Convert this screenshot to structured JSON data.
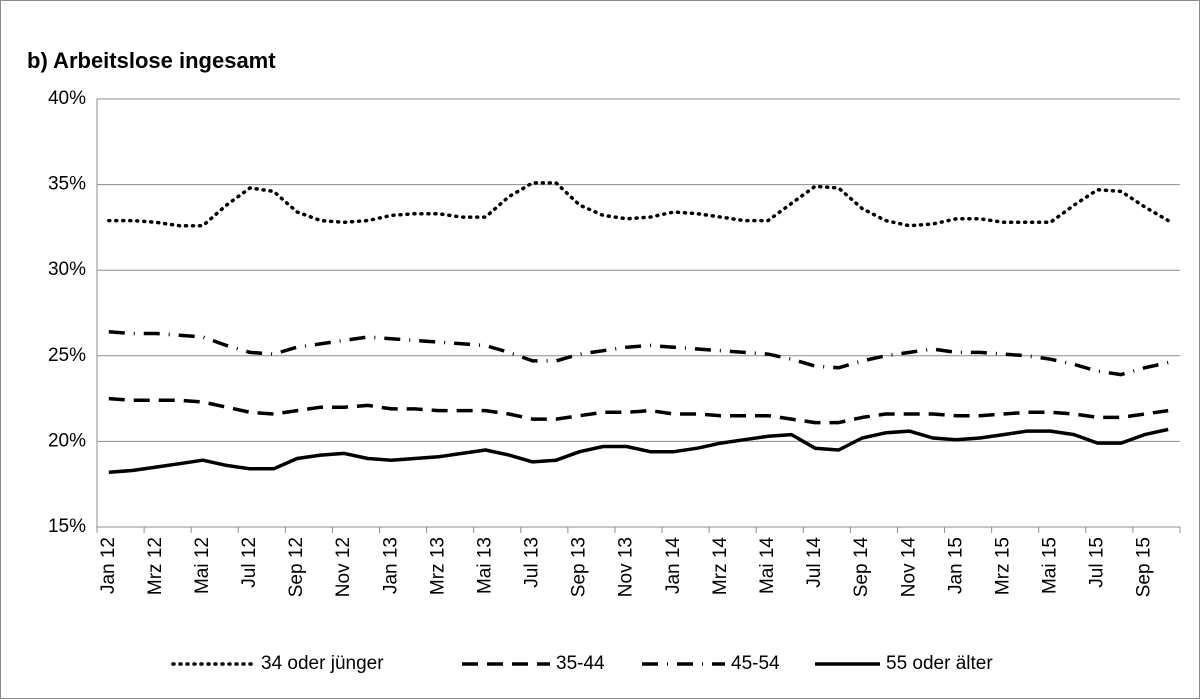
{
  "chart_data": {
    "type": "line",
    "title": "b) Arbeitslose ingesamt",
    "categories": [
      "Jan 12",
      null,
      "Mrz 12",
      null,
      "Mai 12",
      null,
      "Jul 12",
      null,
      "Sep 12",
      null,
      "Nov 12",
      null,
      "Jan 13",
      null,
      "Mrz 13",
      null,
      "Mai 13",
      null,
      "Jul 13",
      null,
      "Sep 13",
      null,
      "Nov 13",
      null,
      "Jan 14",
      null,
      "Mrz 14",
      null,
      "Mai 14",
      null,
      "Jul 14",
      null,
      "Sep 14",
      null,
      "Nov 14",
      null,
      "Jan 15",
      null,
      "Mrz 15",
      null,
      "Mai 15",
      null,
      "Jul 15",
      null,
      "Sep 15",
      null
    ],
    "series": [
      {
        "name": "34 oder jünger",
        "color": "#000000",
        "style": "dotted",
        "values": [
          32.9,
          32.9,
          32.8,
          32.6,
          32.6,
          33.8,
          34.8,
          34.6,
          33.4,
          32.9,
          32.8,
          32.9,
          33.2,
          33.3,
          33.3,
          33.1,
          33.1,
          34.3,
          35.1,
          35.1,
          33.8,
          33.2,
          33.0,
          33.1,
          33.4,
          33.3,
          33.1,
          32.9,
          32.9,
          33.9,
          34.9,
          34.8,
          33.6,
          32.9,
          32.6,
          32.7,
          33.0,
          33.0,
          32.8,
          32.8,
          32.8,
          33.8,
          34.7,
          34.6,
          33.7,
          32.9
        ]
      },
      {
        "name": "35-44",
        "color": "#000000",
        "style": "dashed",
        "values": [
          22.5,
          22.4,
          22.4,
          22.4,
          22.3,
          22.0,
          21.7,
          21.6,
          21.8,
          22.0,
          22.0,
          22.1,
          21.9,
          21.9,
          21.8,
          21.8,
          21.8,
          21.6,
          21.3,
          21.3,
          21.5,
          21.7,
          21.7,
          21.8,
          21.6,
          21.6,
          21.5,
          21.5,
          21.5,
          21.3,
          21.1,
          21.1,
          21.4,
          21.6,
          21.6,
          21.6,
          21.5,
          21.5,
          21.6,
          21.7,
          21.7,
          21.6,
          21.4,
          21.4,
          21.6,
          21.8
        ]
      },
      {
        "name": "45-54",
        "color": "#000000",
        "style": "dashdot",
        "values": [
          26.4,
          26.3,
          26.3,
          26.2,
          26.1,
          25.6,
          25.2,
          25.1,
          25.5,
          25.7,
          25.9,
          26.1,
          26.0,
          25.9,
          25.8,
          25.7,
          25.6,
          25.2,
          24.7,
          24.7,
          25.1,
          25.3,
          25.5,
          25.6,
          25.5,
          25.4,
          25.3,
          25.2,
          25.1,
          24.8,
          24.4,
          24.3,
          24.7,
          25.0,
          25.2,
          25.4,
          25.2,
          25.2,
          25.1,
          25.0,
          24.8,
          24.5,
          24.1,
          23.9,
          24.3,
          24.6
        ]
      },
      {
        "name": "55 oder älter",
        "color": "#000000",
        "style": "solid",
        "values": [
          18.2,
          18.3,
          18.5,
          18.7,
          18.9,
          18.6,
          18.4,
          18.4,
          19.0,
          19.2,
          19.3,
          19.0,
          18.9,
          19.0,
          19.1,
          19.3,
          19.5,
          19.2,
          18.8,
          18.9,
          19.4,
          19.7,
          19.7,
          19.4,
          19.4,
          19.6,
          19.9,
          20.1,
          20.3,
          20.4,
          19.6,
          19.5,
          20.2,
          20.5,
          20.6,
          20.2,
          20.1,
          20.2,
          20.4,
          20.6,
          20.6,
          20.4,
          19.9,
          19.9,
          20.4,
          20.7
        ]
      }
    ],
    "ylim": [
      15,
      40
    ],
    "yticks": [
      {
        "value": 15,
        "label": "15%"
      },
      {
        "value": 20,
        "label": "20%"
      },
      {
        "value": 25,
        "label": "25%"
      },
      {
        "value": 30,
        "label": "30%"
      },
      {
        "value": 35,
        "label": "35%"
      },
      {
        "value": 40,
        "label": "40%"
      }
    ],
    "grid": true,
    "legend": "bottom"
  }
}
